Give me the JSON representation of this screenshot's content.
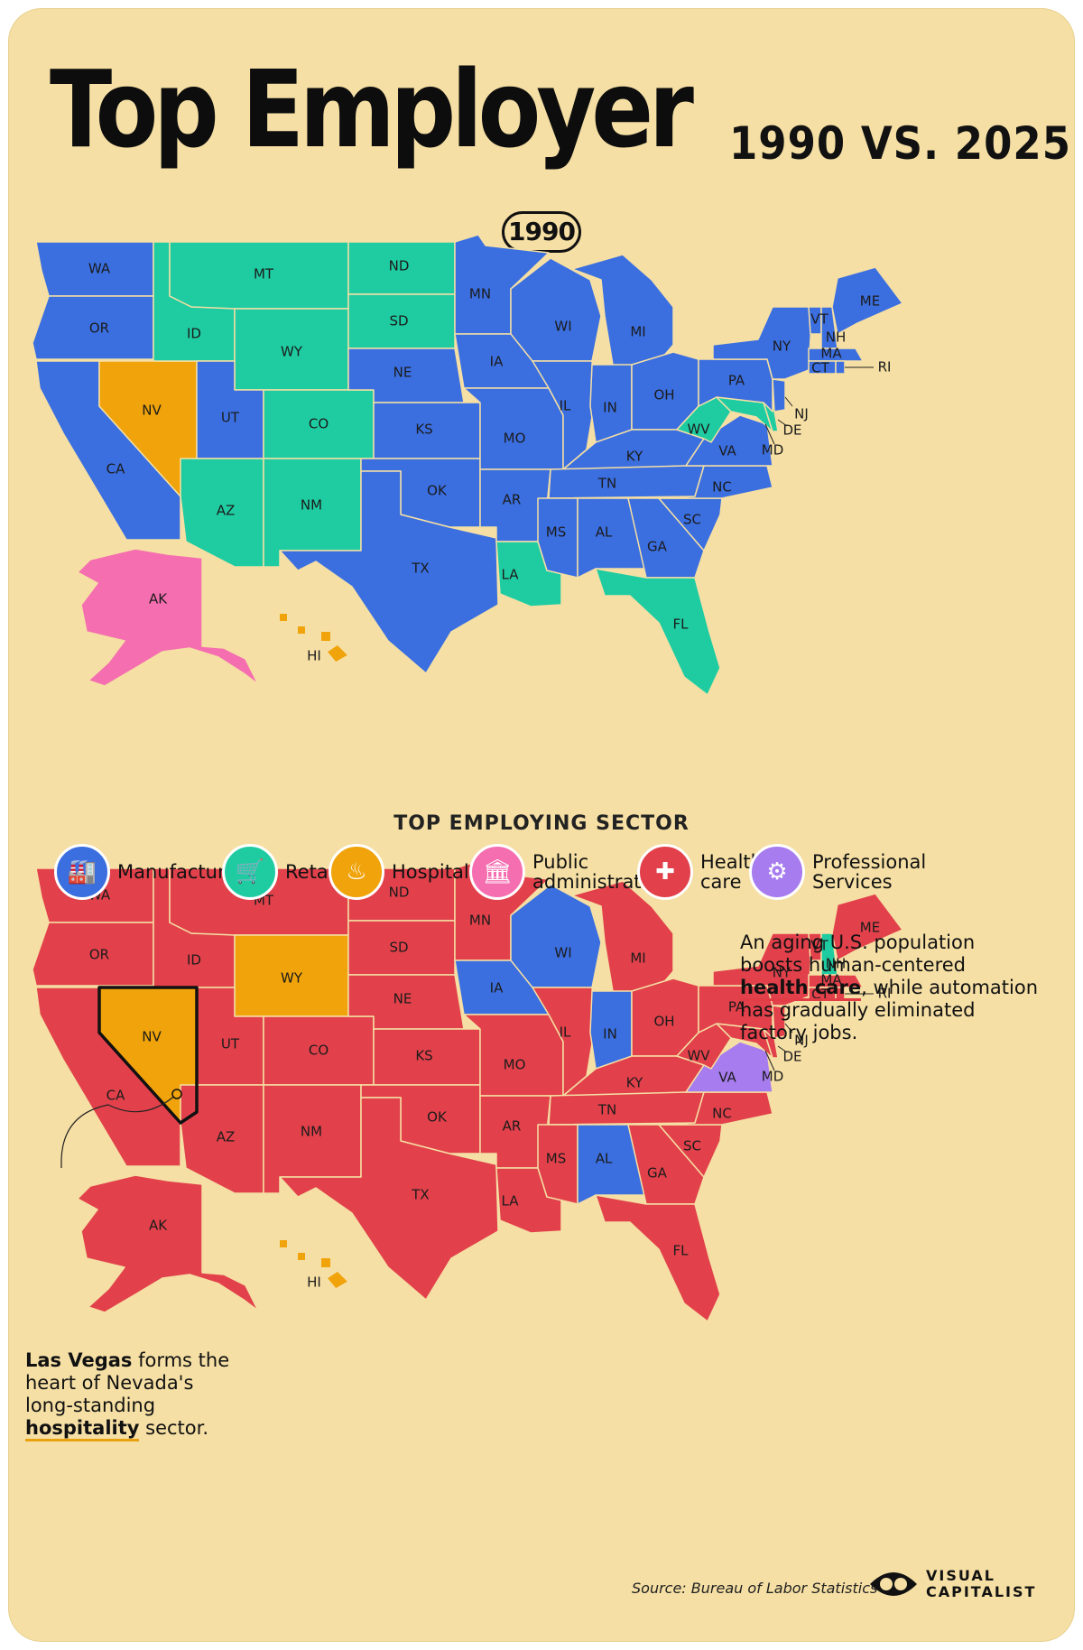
{
  "title": "Top Employer",
  "subtitle": "1990 VS. 2025",
  "maps": [
    {
      "year": "1990",
      "states": {
        "WA": "manufacturing",
        "OR": "manufacturing",
        "CA": "manufacturing",
        "NV": "hospitality",
        "ID": "retail",
        "MT": "retail",
        "WY": "retail",
        "UT": "manufacturing",
        "CO": "retail",
        "AZ": "retail",
        "NM": "retail",
        "ND": "retail",
        "SD": "retail",
        "NE": "manufacturing",
        "KS": "manufacturing",
        "OK": "manufacturing",
        "TX": "manufacturing",
        "MN": "manufacturing",
        "IA": "manufacturing",
        "MO": "manufacturing",
        "AR": "manufacturing",
        "LA": "retail",
        "WI": "manufacturing",
        "IL": "manufacturing",
        "MI": "manufacturing",
        "IN": "manufacturing",
        "OH": "manufacturing",
        "KY": "manufacturing",
        "TN": "manufacturing",
        "MS": "manufacturing",
        "AL": "manufacturing",
        "GA": "manufacturing",
        "FL": "retail",
        "SC": "manufacturing",
        "NC": "manufacturing",
        "VA": "manufacturing",
        "WV": "retail",
        "PA": "manufacturing",
        "NY": "manufacturing",
        "ME": "manufacturing",
        "VT": "manufacturing",
        "NH": "manufacturing",
        "MA": "manufacturing",
        "CT": "manufacturing",
        "RI": "manufacturing",
        "NJ": "manufacturing",
        "DE": "retail",
        "MD": "retail",
        "AK": "public",
        "HI": "hospitality"
      }
    },
    {
      "year": "2025",
      "states": {
        "WA": "health",
        "OR": "health",
        "CA": "health",
        "NV": "hospitality",
        "ID": "health",
        "MT": "health",
        "WY": "hospitality",
        "UT": "health",
        "CO": "health",
        "AZ": "health",
        "NM": "health",
        "ND": "health",
        "SD": "health",
        "NE": "health",
        "KS": "health",
        "OK": "health",
        "TX": "health",
        "MN": "health",
        "IA": "manufacturing",
        "MO": "health",
        "AR": "health",
        "LA": "health",
        "WI": "manufacturing",
        "IL": "health",
        "MI": "health",
        "IN": "manufacturing",
        "OH": "health",
        "KY": "health",
        "TN": "health",
        "MS": "health",
        "AL": "manufacturing",
        "GA": "health",
        "FL": "health",
        "SC": "health",
        "NC": "health",
        "VA": "professional",
        "WV": "health",
        "PA": "health",
        "NY": "health",
        "ME": "health",
        "VT": "health",
        "NH": "retail",
        "MA": "health",
        "CT": "health",
        "RI": "health",
        "NJ": "health",
        "DE": "health",
        "MD": "health",
        "AK": "health",
        "HI": "hospitality"
      }
    }
  ],
  "legend": {
    "title": "TOP EMPLOYING SECTOR",
    "items": [
      {
        "key": "manufacturing",
        "label": "Manufacturing",
        "color": "#3b6fe0",
        "icon": "factory-icon"
      },
      {
        "key": "retail",
        "label": "Retail",
        "color": "#1fcca2",
        "icon": "shopping-cart-icon"
      },
      {
        "key": "hospitality",
        "label": "Hospitality",
        "color": "#f0a30a",
        "icon": "serving-cloche-icon"
      },
      {
        "key": "public",
        "label": "Public\nadministration",
        "color": "#f56eb0",
        "icon": "government-building-icon"
      },
      {
        "key": "health",
        "label": "Health\ncare",
        "color": "#e2414b",
        "icon": "medical-cross-icon"
      },
      {
        "key": "professional",
        "label": "Professional\nServices",
        "color": "#a77cef",
        "icon": "professional-gear-icon"
      }
    ]
  },
  "notes": {
    "health": {
      "pre": "An aging U.S. population boosts human-centered ",
      "bold": "health care",
      "post": ", while automation has gradually eliminated factory jobs."
    },
    "vegas": {
      "bold1": "Las Vegas",
      "mid": " forms the heart of Nevada's long-standing ",
      "bold2": "hospitality",
      "post": " sector."
    }
  },
  "source": "Source: Bureau of Labor Statistics",
  "brand": {
    "line1": "VISUAL",
    "line2": "CAPITALIST"
  }
}
